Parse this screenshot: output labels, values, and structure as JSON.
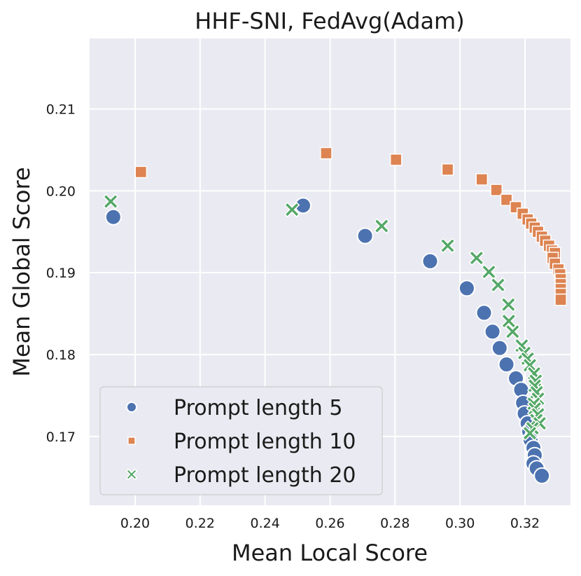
{
  "chart_data": {
    "type": "scatter",
    "title": "HHF-SNI, FedAvg(Adam)",
    "xlabel": "Mean Local Score",
    "ylabel": "Mean Global Score",
    "xlim": [
      0.186,
      0.334
    ],
    "ylim": [
      0.1616,
      0.2186
    ],
    "xticks": [
      "0.20",
      "0.22",
      "0.24",
      "0.26",
      "0.28",
      "0.30",
      "0.32"
    ],
    "yticks": [
      "0.17",
      "0.18",
      "0.19",
      "0.20",
      "0.21"
    ],
    "grid": true,
    "legend_position": "lower-left",
    "series": [
      {
        "name": "Prompt length 5",
        "marker": "circle",
        "color": "#4c72b0",
        "points": [
          [
            0.1933,
            0.1968
          ],
          [
            0.2517,
            0.1982
          ],
          [
            0.2708,
            0.1945
          ],
          [
            0.2908,
            0.1914
          ],
          [
            0.3021,
            0.1881
          ],
          [
            0.3074,
            0.1851
          ],
          [
            0.31,
            0.1828
          ],
          [
            0.3122,
            0.1808
          ],
          [
            0.3143,
            0.1788
          ],
          [
            0.3172,
            0.1771
          ],
          [
            0.3188,
            0.1757
          ],
          [
            0.3194,
            0.1741
          ],
          [
            0.3199,
            0.1728
          ],
          [
            0.3208,
            0.1716
          ],
          [
            0.3213,
            0.1706
          ],
          [
            0.3217,
            0.1696
          ],
          [
            0.3226,
            0.1686
          ],
          [
            0.323,
            0.1677
          ],
          [
            0.3226,
            0.1667
          ],
          [
            0.3236,
            0.1661
          ],
          [
            0.3252,
            0.1652
          ]
        ]
      },
      {
        "name": "Prompt length 10",
        "marker": "square",
        "color": "#dd8452",
        "points": [
          [
            0.2018,
            0.2023
          ],
          [
            0.2588,
            0.2046
          ],
          [
            0.2803,
            0.2038
          ],
          [
            0.2962,
            0.2026
          ],
          [
            0.3067,
            0.2014
          ],
          [
            0.3112,
            0.2001
          ],
          [
            0.3143,
            0.1989
          ],
          [
            0.3172,
            0.198
          ],
          [
            0.3193,
            0.1972
          ],
          [
            0.3208,
            0.1965
          ],
          [
            0.3219,
            0.196
          ],
          [
            0.323,
            0.1955
          ],
          [
            0.324,
            0.195
          ],
          [
            0.3252,
            0.1944
          ],
          [
            0.3262,
            0.1939
          ],
          [
            0.3274,
            0.1933
          ],
          [
            0.3283,
            0.1927
          ],
          [
            0.3292,
            0.1924
          ],
          [
            0.3285,
            0.1918
          ],
          [
            0.3292,
            0.1911
          ],
          [
            0.3303,
            0.1904
          ],
          [
            0.3308,
            0.1898
          ],
          [
            0.331,
            0.1892
          ],
          [
            0.331,
            0.1886
          ],
          [
            0.331,
            0.188
          ],
          [
            0.331,
            0.1874
          ],
          [
            0.331,
            0.1867
          ]
        ]
      },
      {
        "name": "Prompt length 20",
        "marker": "x",
        "color": "#55a868",
        "points": [
          [
            0.1925,
            0.1987
          ],
          [
            0.2483,
            0.1977
          ],
          [
            0.2759,
            0.1957
          ],
          [
            0.2962,
            0.1933
          ],
          [
            0.3051,
            0.1918
          ],
          [
            0.3089,
            0.1901
          ],
          [
            0.3117,
            0.1885
          ],
          [
            0.3149,
            0.1861
          ],
          [
            0.315,
            0.1841
          ],
          [
            0.3162,
            0.1828
          ],
          [
            0.319,
            0.1811
          ],
          [
            0.3198,
            0.1802
          ],
          [
            0.3208,
            0.1795
          ],
          [
            0.3215,
            0.1787
          ],
          [
            0.3228,
            0.1777
          ],
          [
            0.3233,
            0.1768
          ],
          [
            0.323,
            0.1762
          ],
          [
            0.3236,
            0.1754
          ],
          [
            0.324,
            0.1746
          ],
          [
            0.3227,
            0.174
          ],
          [
            0.323,
            0.1734
          ],
          [
            0.324,
            0.1727
          ],
          [
            0.3235,
            0.172
          ],
          [
            0.3245,
            0.1716
          ],
          [
            0.3223,
            0.171
          ],
          [
            0.3215,
            0.1704
          ]
        ]
      }
    ]
  }
}
